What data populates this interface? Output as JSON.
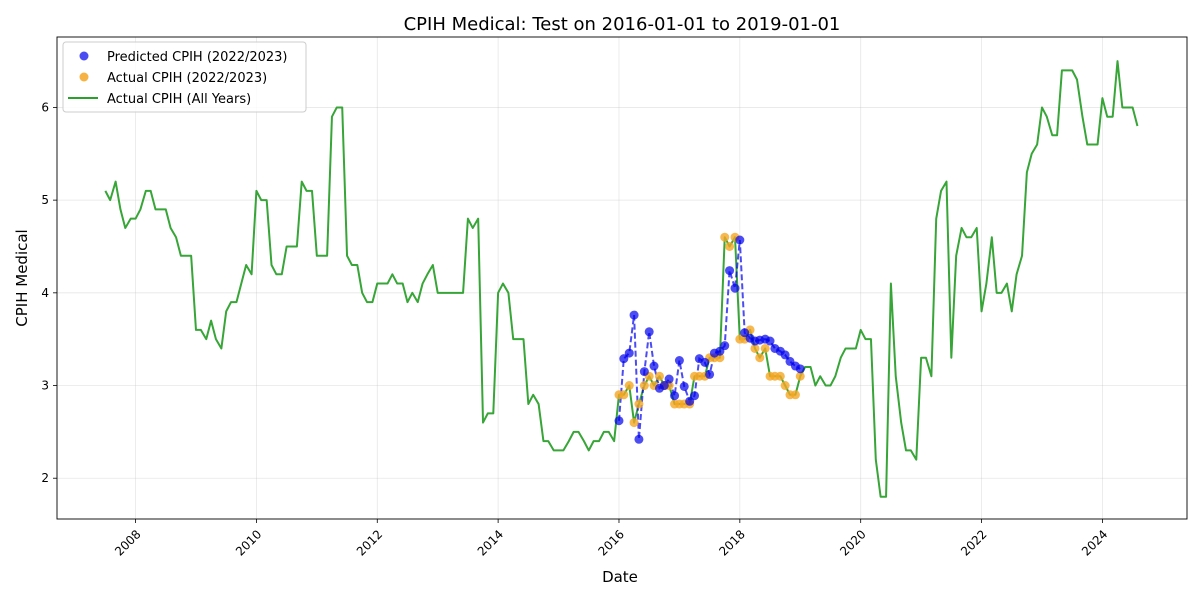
{
  "chart_data": {
    "type": "line",
    "title": "CPIH Medical: Test on 2016-01-01 to 2019-01-01",
    "xlabel": "Date",
    "ylabel": "CPIH Medical",
    "xlim": [
      2006.7,
      2025.4
    ],
    "ylim": [
      1.56,
      6.76
    ],
    "grid": true,
    "legend_position": "top-left",
    "x_ticks": [
      "2008",
      "2010",
      "2012",
      "2014",
      "2016",
      "2018",
      "2020",
      "2022",
      "2024"
    ],
    "y_ticks": [
      "2",
      "3",
      "4",
      "5",
      "6"
    ],
    "series": [
      {
        "name": "Predicted CPIH (2022/2023)",
        "kind": "scatter-dashed",
        "color": "#0000ee",
        "x": [
          2016.0,
          2016.08,
          2016.17,
          2016.25,
          2016.33,
          2016.42,
          2016.5,
          2016.58,
          2016.67,
          2016.75,
          2016.83,
          2016.92,
          2017.0,
          2017.08,
          2017.17,
          2017.25,
          2017.33,
          2017.42,
          2017.5,
          2017.58,
          2017.67,
          2017.75,
          2017.83,
          2017.92,
          2018.0,
          2018.08,
          2018.17,
          2018.25,
          2018.33,
          2018.42,
          2018.5,
          2018.58,
          2018.67,
          2018.75,
          2018.83,
          2018.92,
          2019.0
        ],
        "y": [
          2.62,
          3.29,
          3.35,
          3.76,
          2.42,
          3.15,
          3.58,
          3.21,
          2.97,
          3.0,
          3.07,
          2.89,
          3.27,
          2.99,
          2.83,
          2.89,
          3.29,
          3.25,
          3.12,
          3.35,
          3.37,
          3.43,
          4.24,
          4.05,
          4.57,
          3.57,
          3.51,
          3.48,
          3.49,
          3.5,
          3.48,
          3.4,
          3.37,
          3.33,
          3.26,
          3.21,
          3.18
        ]
      },
      {
        "name": "Actual CPIH (2022/2023)",
        "kind": "scatter",
        "color": "#f5a623",
        "x": [
          2016.0,
          2016.08,
          2016.17,
          2016.25,
          2016.33,
          2016.42,
          2016.5,
          2016.58,
          2016.67,
          2016.75,
          2016.83,
          2016.92,
          2017.0,
          2017.08,
          2017.17,
          2017.25,
          2017.33,
          2017.42,
          2017.5,
          2017.58,
          2017.67,
          2017.75,
          2017.83,
          2017.92,
          2018.0,
          2018.08,
          2018.17,
          2018.25,
          2018.33,
          2018.42,
          2018.5,
          2018.58,
          2018.67,
          2018.75,
          2018.83,
          2018.92,
          2019.0
        ],
        "y": [
          2.9,
          2.9,
          3.0,
          2.6,
          2.8,
          3.0,
          3.1,
          3.0,
          3.1,
          3.0,
          3.0,
          2.8,
          2.8,
          2.8,
          2.8,
          3.1,
          3.1,
          3.1,
          3.3,
          3.3,
          3.3,
          4.6,
          4.5,
          4.6,
          3.5,
          3.5,
          3.6,
          3.4,
          3.3,
          3.4,
          3.1,
          3.1,
          3.1,
          3.0,
          2.9,
          2.9,
          3.1
        ]
      },
      {
        "name": "Actual CPIH (All Years)",
        "kind": "line",
        "color": "#2ca02c",
        "x": [
          2007.5,
          2007.58,
          2007.67,
          2007.75,
          2007.83,
          2007.92,
          2008.0,
          2008.08,
          2008.17,
          2008.25,
          2008.33,
          2008.42,
          2008.5,
          2008.58,
          2008.67,
          2008.75,
          2008.83,
          2008.92,
          2009.0,
          2009.08,
          2009.17,
          2009.25,
          2009.33,
          2009.42,
          2009.5,
          2009.58,
          2009.67,
          2009.75,
          2009.83,
          2009.92,
          2010.0,
          2010.08,
          2010.17,
          2010.25,
          2010.33,
          2010.42,
          2010.5,
          2010.58,
          2010.67,
          2010.75,
          2010.83,
          2010.92,
          2011.0,
          2011.08,
          2011.17,
          2011.25,
          2011.33,
          2011.42,
          2011.5,
          2011.58,
          2011.67,
          2011.75,
          2011.83,
          2011.92,
          2012.0,
          2012.08,
          2012.17,
          2012.25,
          2012.33,
          2012.42,
          2012.5,
          2012.58,
          2012.67,
          2012.75,
          2012.83,
          2012.92,
          2013.0,
          2013.08,
          2013.17,
          2013.25,
          2013.33,
          2013.42,
          2013.5,
          2013.58,
          2013.67,
          2013.75,
          2013.83,
          2013.92,
          2014.0,
          2014.08,
          2014.17,
          2014.25,
          2014.33,
          2014.42,
          2014.5,
          2014.58,
          2014.67,
          2014.75,
          2014.83,
          2014.92,
          2015.0,
          2015.08,
          2015.17,
          2015.25,
          2015.33,
          2015.42,
          2015.5,
          2015.58,
          2015.67,
          2015.75,
          2015.83,
          2015.92,
          2016.0,
          2016.08,
          2016.17,
          2016.25,
          2016.33,
          2016.42,
          2016.5,
          2016.58,
          2016.67,
          2016.75,
          2016.83,
          2016.92,
          2017.0,
          2017.08,
          2017.17,
          2017.25,
          2017.33,
          2017.42,
          2017.5,
          2017.58,
          2017.67,
          2017.75,
          2017.83,
          2017.92,
          2018.0,
          2018.08,
          2018.17,
          2018.25,
          2018.33,
          2018.42,
          2018.5,
          2018.58,
          2018.67,
          2018.75,
          2018.83,
          2018.92,
          2019.0,
          2019.08,
          2019.17,
          2019.25,
          2019.33,
          2019.42,
          2019.5,
          2019.58,
          2019.67,
          2019.75,
          2019.83,
          2019.92,
          2020.0,
          2020.08,
          2020.17,
          2020.25,
          2020.33,
          2020.42,
          2020.5,
          2020.58,
          2020.67,
          2020.75,
          2020.83,
          2020.92,
          2021.0,
          2021.08,
          2021.17,
          2021.25,
          2021.33,
          2021.42,
          2021.5,
          2021.58,
          2021.67,
          2021.75,
          2021.83,
          2021.92,
          2022.0,
          2022.08,
          2022.17,
          2022.25,
          2022.33,
          2022.42,
          2022.5,
          2022.58,
          2022.67,
          2022.75,
          2022.83,
          2022.92,
          2023.0,
          2023.08,
          2023.17,
          2023.25,
          2023.33,
          2023.42,
          2023.5,
          2023.58,
          2023.67,
          2023.75,
          2023.83,
          2023.92,
          2024.0,
          2024.08,
          2024.17,
          2024.25,
          2024.33,
          2024.42,
          2024.5,
          2024.58
        ],
        "y": [
          5.1,
          5.0,
          5.2,
          4.9,
          4.7,
          4.8,
          4.8,
          4.9,
          5.1,
          5.1,
          4.9,
          4.9,
          4.9,
          4.7,
          4.6,
          4.4,
          4.4,
          4.4,
          3.6,
          3.6,
          3.5,
          3.7,
          3.5,
          3.4,
          3.8,
          3.9,
          3.9,
          4.1,
          4.3,
          4.2,
          5.1,
          5.0,
          5.0,
          4.3,
          4.2,
          4.2,
          4.5,
          4.5,
          4.5,
          5.2,
          5.1,
          5.1,
          4.4,
          4.4,
          4.4,
          5.9,
          6.0,
          6.0,
          4.4,
          4.3,
          4.3,
          4.0,
          3.9,
          3.9,
          4.1,
          4.1,
          4.1,
          4.2,
          4.1,
          4.1,
          3.9,
          4.0,
          3.9,
          4.1,
          4.2,
          4.3,
          4.0,
          4.0,
          4.0,
          4.0,
          4.0,
          4.0,
          4.8,
          4.7,
          4.8,
          2.6,
          2.7,
          2.7,
          4.0,
          4.1,
          4.0,
          3.5,
          3.5,
          3.5,
          2.8,
          2.9,
          2.8,
          2.4,
          2.4,
          2.3,
          2.3,
          2.3,
          2.4,
          2.5,
          2.5,
          2.4,
          2.3,
          2.4,
          2.4,
          2.5,
          2.5,
          2.4,
          2.9,
          2.9,
          3.0,
          2.6,
          2.8,
          3.0,
          3.1,
          3.0,
          3.1,
          3.0,
          3.0,
          2.8,
          2.8,
          2.8,
          2.8,
          3.1,
          3.1,
          3.1,
          3.3,
          3.3,
          3.3,
          4.6,
          4.5,
          4.6,
          3.5,
          3.5,
          3.6,
          3.4,
          3.3,
          3.4,
          3.1,
          3.1,
          3.1,
          3.0,
          2.9,
          2.9,
          3.1,
          3.2,
          3.2,
          3.0,
          3.1,
          3.0,
          3.0,
          3.1,
          3.3,
          3.4,
          3.4,
          3.4,
          3.6,
          3.5,
          3.5,
          2.2,
          1.8,
          1.8,
          4.1,
          3.1,
          2.6,
          2.3,
          2.3,
          2.2,
          3.3,
          3.3,
          3.1,
          4.8,
          5.1,
          5.2,
          3.3,
          4.4,
          4.7,
          4.6,
          4.6,
          4.7,
          3.8,
          4.1,
          4.6,
          4.0,
          4.0,
          4.1,
          3.8,
          4.2,
          4.4,
          5.3,
          5.5,
          5.6,
          6.0,
          5.9,
          5.7,
          5.7,
          6.4,
          6.4,
          6.4,
          6.3,
          5.9,
          5.6,
          5.6,
          5.6,
          6.1,
          5.9,
          5.9,
          6.5,
          6.0,
          6.0,
          6.0,
          5.8
        ]
      }
    ]
  }
}
